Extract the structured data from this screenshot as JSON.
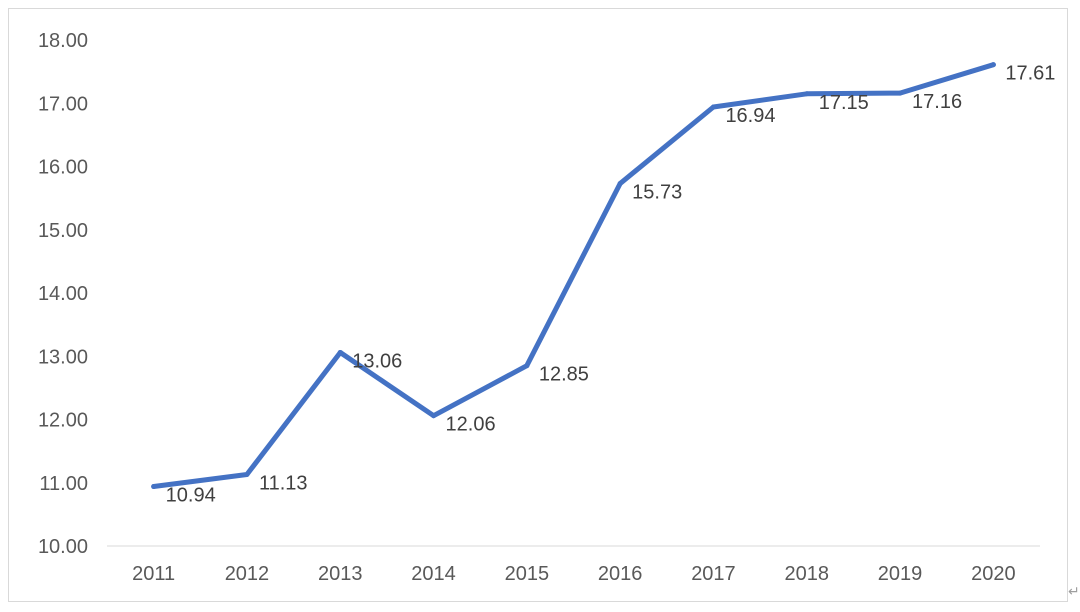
{
  "chart_data": {
    "type": "line",
    "categories": [
      "2011",
      "2012",
      "2013",
      "2014",
      "2015",
      "2016",
      "2017",
      "2018",
      "2019",
      "2020"
    ],
    "series": [
      {
        "values": [
          10.94,
          11.13,
          13.06,
          12.06,
          12.85,
          15.73,
          16.94,
          17.15,
          17.16,
          17.61
        ]
      }
    ],
    "data_labels": [
      "10.94",
      "11.13",
      "13.06",
      "12.06",
      "12.85",
      "15.73",
      "16.94",
      "17.15",
      "17.16",
      "17.61"
    ],
    "y_ticks": [
      "10.00",
      "11.00",
      "12.00",
      "13.00",
      "14.00",
      "15.00",
      "16.00",
      "17.00",
      "18.00"
    ],
    "ylim": [
      10,
      18
    ],
    "grid": false,
    "legend": "none",
    "line_color": "#4472C4",
    "title": "",
    "xlabel": "",
    "ylabel": ""
  },
  "corner_mark": "↵"
}
